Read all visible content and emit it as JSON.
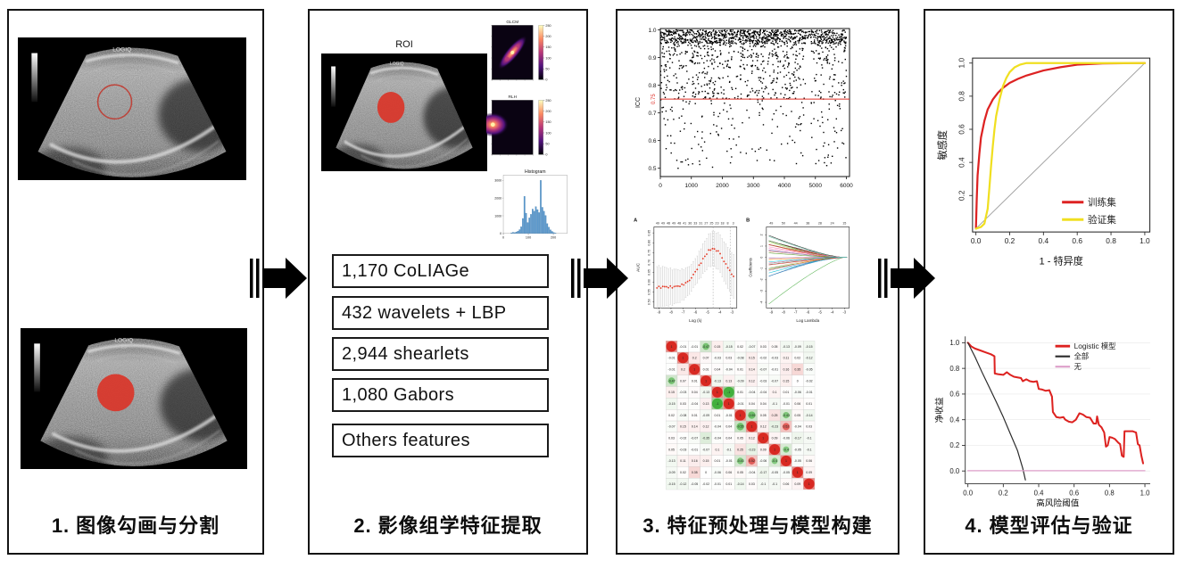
{
  "panels": [
    {
      "num": "1.",
      "title": "图像勾画与分割"
    },
    {
      "num": "2.",
      "title": "影像组学特征提取"
    },
    {
      "num": "3.",
      "title": "特征预处理与模型构建"
    },
    {
      "num": "4.",
      "title": "模型评估与验证"
    }
  ],
  "panel2": {
    "roi_label": "ROI",
    "features": [
      "1,170 CoLIAGe",
      "432 wavelets + LBP",
      "2,944 shearlets",
      "1,080 Gabors",
      "Others features"
    ]
  },
  "colors": {
    "roi_red": "#d8382c",
    "accent_red": "#dd2220",
    "validation_yellow": "#f0df20",
    "none_pink": "#dd9fca",
    "neg_green": "#4daf4a"
  },
  "chart_data": [
    {
      "id": "us1",
      "type": "ultrasound",
      "roi": "outline",
      "machine": "LOGIQ",
      "machine2": "E9"
    },
    {
      "id": "us2",
      "type": "ultrasound",
      "roi": "filled",
      "machine": "LOGIQ",
      "machine2": "E9"
    },
    {
      "id": "us3",
      "type": "ultrasound",
      "roi": "filled",
      "machine": "LOGIQ",
      "machine2": "E9"
    },
    {
      "id": "glcm",
      "type": "heatmap",
      "title": "GLCM",
      "orientation": "diagonal",
      "colorbar_ticks": [
        "250",
        "200",
        "150",
        "100",
        "50",
        "0"
      ]
    },
    {
      "id": "rlh",
      "type": "heatmap",
      "title": "RLH",
      "orientation": "left",
      "colorbar_ticks": [
        "250",
        "200",
        "150",
        "100",
        "50",
        "0"
      ]
    },
    {
      "id": "hist",
      "type": "bar",
      "title": "Histogram",
      "x_ticks": [
        0,
        100,
        200
      ],
      "y_ticks": [
        0,
        1000,
        2000,
        3000
      ],
      "x_range": [
        0,
        255
      ],
      "y_max": 3200,
      "bin_start": 30,
      "bin_width": 6.5,
      "values": [
        40,
        70,
        50,
        90,
        140,
        220,
        380,
        850,
        2100,
        1150,
        620,
        880,
        1080,
        1380,
        1260,
        1520,
        1350,
        1180,
        3000,
        1480,
        1260,
        1020,
        560,
        360,
        210,
        120,
        60,
        30
      ],
      "bar_color": "#5b99cf"
    },
    {
      "id": "icc",
      "type": "scatter",
      "ylabel": "ICC",
      "threshold": 0.75,
      "threshold_label": "0.75",
      "threshold_color": "#e03028",
      "x_ticks": [
        0,
        1000,
        2000,
        3000,
        4000,
        5000,
        6000
      ],
      "y_ticks": [
        "1.0",
        "0.9",
        "0.8",
        "0.7",
        "0.6",
        "0.5"
      ],
      "x_range": [
        0,
        6100
      ],
      "y_range": [
        0.47,
        1.005
      ],
      "n_points": 1700,
      "seed": 42,
      "y_distribution": {
        "p_top": 0.55,
        "top": [
          0.95,
          1.0
        ],
        "p_high": 0.2,
        "high": [
          0.86,
          0.95
        ],
        "p_mid": 0.13,
        "mid": [
          0.75,
          0.86
        ],
        "low": [
          0.5,
          0.78
        ]
      }
    },
    {
      "id": "lassoA",
      "type": "scatter-errorbar",
      "panel_label": "A",
      "top_axis": [
        "49",
        "49",
        "48",
        "49",
        "48",
        "41",
        "36",
        "33",
        "31",
        "27",
        "25",
        "23",
        "18",
        "8",
        "3"
      ],
      "ylabel": "AUC",
      "xlabel": "Log (λ)",
      "x_ticks": [
        -9,
        -8,
        -7,
        -6,
        -5,
        -4,
        -3
      ],
      "y_ticks": [
        "0.50",
        "0.55",
        "0.60",
        "0.65",
        "0.70",
        "0.75",
        "0.80",
        "0.85"
      ],
      "baseline_auc": 0.575,
      "peak": {
        "x": -4.55,
        "auc": 0.77
      },
      "sigma": 1.05,
      "vlines": [
        -4.55,
        -3.15
      ],
      "seed": 9
    },
    {
      "id": "lassoB",
      "type": "lasso-paths",
      "panel_label": "B",
      "top_axis": [
        "49",
        "50",
        "44",
        "38",
        "28",
        "24",
        "15"
      ],
      "ylabel": "Coefficients",
      "xlabel": "Log Lambda",
      "x_ticks": [
        -9,
        -8,
        -7,
        -6,
        -5,
        -4,
        -3
      ],
      "y_ticks": [
        -4,
        -3,
        -2,
        -1,
        0,
        1,
        2
      ],
      "n_lines": 30,
      "seed": 11,
      "palette": [
        "#1a1a1a",
        "#55b24e",
        "#e41a1c",
        "#377eb8",
        "#984ea3",
        "#ff7f00",
        "#a65628",
        "#f781bf",
        "#00bcd4",
        "#66c2a5",
        "#fc8d62",
        "#8da0cb",
        "#e78ac3",
        "#a6d854",
        "#e5c494",
        "#7570b3",
        "#d95f02",
        "#1b9e77",
        "#c51b7d",
        "#4d9221"
      ]
    },
    {
      "id": "corr",
      "type": "correlation-heatmap",
      "matrix": [
        [
          1,
          -0.01,
          -0.01,
          -0.47,
          0.15,
          -0.15,
          0.02,
          -0.07,
          0.03,
          0.05,
          -0.13,
          -0.09,
          -0.15
        ],
        [
          -0.01,
          1,
          0.2,
          0.07,
          -0.03,
          0.03,
          -0.08,
          0.15,
          -0.02,
          -0.03,
          0.11,
          0.02,
          -0.12
        ],
        [
          -0.01,
          0.2,
          1,
          0.01,
          0.04,
          -0.04,
          0.01,
          0.14,
          -0.07,
          -0.01,
          0.16,
          0.35,
          -0.05
        ],
        [
          -0.47,
          0.07,
          0.01,
          1,
          -0.13,
          0.13,
          -0.09,
          0.12,
          -0.03,
          -0.07,
          0.15,
          0,
          -0.02
        ],
        [
          0.15,
          -0.03,
          0.04,
          -0.13,
          1,
          -1,
          0.01,
          -0.04,
          -0.04,
          0.1,
          0.01,
          -0.06,
          -0.01
        ],
        [
          -0.15,
          0.03,
          -0.04,
          0.13,
          -1,
          1,
          -0.01,
          0.04,
          0.04,
          -0.1,
          -0.01,
          0.06,
          0.01
        ],
        [
          0.02,
          -0.08,
          0.01,
          -0.09,
          0.01,
          -0.01,
          1,
          -0.55,
          0.05,
          0.25,
          -0.43,
          0.05,
          -0.14
        ],
        [
          -0.07,
          0.15,
          0.14,
          0.12,
          -0.04,
          0.04,
          -0.55,
          1,
          0.12,
          -0.23,
          0.52,
          -0.04,
          0.03
        ],
        [
          0.03,
          -0.02,
          -0.07,
          -0.35,
          -0.04,
          0.04,
          0.05,
          0.12,
          1,
          0.09,
          -0.06,
          -0.17,
          -0.1
        ],
        [
          0.05,
          -0.03,
          -0.01,
          -0.07,
          0.1,
          -0.1,
          0.25,
          -0.23,
          0.09,
          1,
          -0.4,
          -0.05,
          -0.1
        ],
        [
          -0.13,
          0.11,
          0.16,
          0.15,
          0.01,
          -0.01,
          -0.43,
          0.52,
          -0.06,
          -0.4,
          1,
          -0.05,
          0.06
        ],
        [
          -0.09,
          0.02,
          0.35,
          0,
          -0.06,
          0.06,
          0.05,
          -0.04,
          -0.17,
          -0.05,
          -0.05,
          1,
          0.09
        ],
        [
          -0.15,
          -0.12,
          -0.05,
          -0.02,
          -0.01,
          0.01,
          -0.14,
          0.03,
          -0.1,
          -0.1,
          0.06,
          0.09,
          1
        ]
      ]
    },
    {
      "id": "roc",
      "type": "line",
      "xlabel": "1 - 特异度",
      "ylabel": "敏感度",
      "x_ticks": [
        "0.0",
        "0.2",
        "0.4",
        "0.6",
        "0.8",
        "1.0"
      ],
      "y_ticks": [
        "0.2",
        "0.4",
        "0.6",
        "0.8",
        "1.0"
      ],
      "diagonal": true,
      "series": [
        {
          "name": "训练集",
          "color": "#dd2222",
          "width": 2.4,
          "points": [
            [
              0,
              0
            ],
            [
              0.005,
              0.18
            ],
            [
              0.01,
              0.32
            ],
            [
              0.02,
              0.45
            ],
            [
              0.03,
              0.55
            ],
            [
              0.05,
              0.65
            ],
            [
              0.07,
              0.72
            ],
            [
              0.1,
              0.78
            ],
            [
              0.13,
              0.82
            ],
            [
              0.16,
              0.85
            ],
            [
              0.2,
              0.88
            ],
            [
              0.25,
              0.905
            ],
            [
              0.3,
              0.925
            ],
            [
              0.4,
              0.955
            ],
            [
              0.5,
              0.975
            ],
            [
              0.6,
              0.99
            ],
            [
              0.75,
              0.998
            ],
            [
              1,
              1
            ]
          ]
        },
        {
          "name": "验证集",
          "color": "#f0df20",
          "width": 2.4,
          "points": [
            [
              0,
              0
            ],
            [
              0.03,
              0.01
            ],
            [
              0.05,
              0.03
            ],
            [
              0.07,
              0.12
            ],
            [
              0.08,
              0.25
            ],
            [
              0.09,
              0.38
            ],
            [
              0.1,
              0.5
            ],
            [
              0.11,
              0.6
            ],
            [
              0.12,
              0.68
            ],
            [
              0.14,
              0.78
            ],
            [
              0.16,
              0.86
            ],
            [
              0.18,
              0.91
            ],
            [
              0.2,
              0.945
            ],
            [
              0.23,
              0.975
            ],
            [
              0.26,
              0.99
            ],
            [
              0.3,
              1
            ],
            [
              1,
              1
            ]
          ]
        }
      ]
    },
    {
      "id": "dca",
      "type": "line",
      "xlabel": "高风险阈值",
      "ylabel": "净收益",
      "x_ticks": [
        "0.0",
        "0.2",
        "0.4",
        "0.6",
        "0.8",
        "1.0"
      ],
      "y_ticks": [
        "0.0",
        "0.2",
        "0.4",
        "0.6",
        "0.8",
        "1.0"
      ],
      "grid": true,
      "series": [
        {
          "name": "Logistic 模型",
          "color": "#dd2220",
          "width": 2.2,
          "points": [
            [
              0,
              1
            ],
            [
              0.02,
              0.97
            ],
            [
              0.04,
              0.955
            ],
            [
              0.07,
              0.94
            ],
            [
              0.1,
              0.925
            ],
            [
              0.13,
              0.91
            ],
            [
              0.15,
              0.895
            ],
            [
              0.152,
              0.76
            ],
            [
              0.17,
              0.755
            ],
            [
              0.2,
              0.75
            ],
            [
              0.22,
              0.77
            ],
            [
              0.24,
              0.75
            ],
            [
              0.26,
              0.735
            ],
            [
              0.28,
              0.73
            ],
            [
              0.3,
              0.725
            ],
            [
              0.31,
              0.7
            ],
            [
              0.33,
              0.715
            ],
            [
              0.35,
              0.7
            ],
            [
              0.37,
              0.695
            ],
            [
              0.39,
              0.7
            ],
            [
              0.4,
              0.64
            ],
            [
              0.42,
              0.635
            ],
            [
              0.44,
              0.625
            ],
            [
              0.46,
              0.63
            ],
            [
              0.475,
              0.58
            ],
            [
              0.48,
              0.46
            ],
            [
              0.5,
              0.42
            ],
            [
              0.52,
              0.415
            ],
            [
              0.54,
              0.42
            ],
            [
              0.55,
              0.4
            ],
            [
              0.57,
              0.385
            ],
            [
              0.59,
              0.38
            ],
            [
              0.61,
              0.4
            ],
            [
              0.63,
              0.45
            ],
            [
              0.65,
              0.44
            ],
            [
              0.67,
              0.42
            ],
            [
              0.69,
              0.415
            ],
            [
              0.71,
              0.37
            ],
            [
              0.725,
              0.37
            ],
            [
              0.73,
              0.425
            ],
            [
              0.74,
              0.36
            ],
            [
              0.755,
              0.34
            ],
            [
              0.77,
              0.3
            ],
            [
              0.78,
              0.19
            ],
            [
              0.79,
              0.2
            ],
            [
              0.8,
              0.265
            ],
            [
              0.815,
              0.26
            ],
            [
              0.83,
              0.25
            ],
            [
              0.85,
              0.22
            ],
            [
              0.86,
              0.21
            ],
            [
              0.87,
              0.12
            ],
            [
              0.88,
              0.11
            ],
            [
              0.885,
              0.31
            ],
            [
              0.91,
              0.31
            ],
            [
              0.93,
              0.31
            ],
            [
              0.95,
              0.3
            ],
            [
              0.96,
              0.21
            ],
            [
              0.97,
              0.2
            ],
            [
              0.98,
              0.12
            ],
            [
              0.99,
              0.06
            ]
          ]
        },
        {
          "name": "全部",
          "color": "#2a2a2a",
          "width": 1.3,
          "points": [
            [
              0,
              1
            ],
            [
              0.04,
              0.89
            ],
            [
              0.08,
              0.77
            ],
            [
              0.12,
              0.655
            ],
            [
              0.16,
              0.54
            ],
            [
              0.2,
              0.42
            ],
            [
              0.24,
              0.29
            ],
            [
              0.28,
              0.16
            ],
            [
              0.31,
              0.02
            ],
            [
              0.325,
              -0.07
            ]
          ]
        },
        {
          "name": "无",
          "color": "#dd9fca",
          "width": 1.4,
          "points": [
            [
              0,
              0.002
            ],
            [
              1,
              0.002
            ]
          ]
        }
      ]
    }
  ]
}
